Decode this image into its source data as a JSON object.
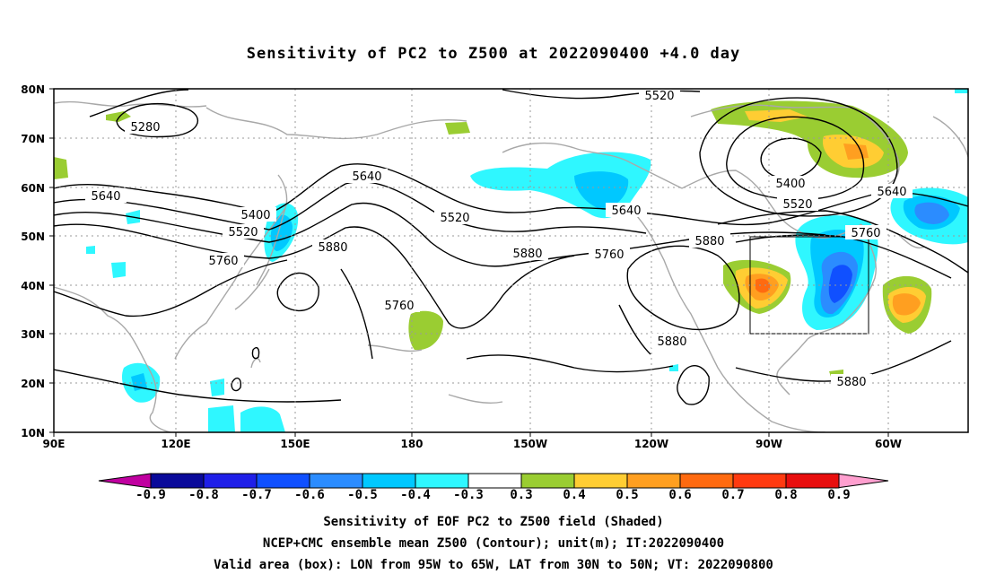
{
  "title": "Sensitivity of PC2 to Z500 at 2022090400 +4.0 day",
  "lat_labels": [
    "80N",
    "70N",
    "60N",
    "50N",
    "40N",
    "30N",
    "20N",
    "10N"
  ],
  "lon_labels": [
    "90E",
    "120E",
    "150E",
    "180",
    "150W",
    "120W",
    "90W",
    "60W"
  ],
  "contour_labels": [
    "5280",
    "5520",
    "5640",
    "5400",
    "5520",
    "5760",
    "5640",
    "5520",
    "5880",
    "5880",
    "5640",
    "5760",
    "5760",
    "5880",
    "5400",
    "5520",
    "5640",
    "5760",
    "5880",
    "5880"
  ],
  "colorbar": {
    "labels": [
      "-0.9",
      "-0.8",
      "-0.7",
      "-0.6",
      "-0.5",
      "-0.4",
      "-0.3",
      "0.3",
      "0.4",
      "0.5",
      "0.6",
      "0.7",
      "0.8",
      "0.9"
    ],
    "colors": [
      "#0a0a9a",
      "#1f1fe8",
      "#1050ff",
      "#2b8cff",
      "#00c8ff",
      "#2ff7ff",
      "#ffffff",
      "#9acd32",
      "#ffcd33",
      "#ff9f20",
      "#ff6a10",
      "#ff3a10",
      "#e80e0e"
    ],
    "low_end_color": "#c000a0",
    "high_end_color": "#ff9fcf"
  },
  "valid_box": {
    "lon_min": -95,
    "lon_max": -65,
    "lat_min": 30,
    "lat_max": 50
  },
  "captions": [
    "Sensitivity of EOF PC2 to Z500 field (Shaded)",
    "NCEP+CMC ensemble mean Z500 (Contour); unit(m); IT:2022090400",
    "Valid area (box): LON from 95W to 65W, LAT from 30N to 50N; VT: 2022090800"
  ]
}
